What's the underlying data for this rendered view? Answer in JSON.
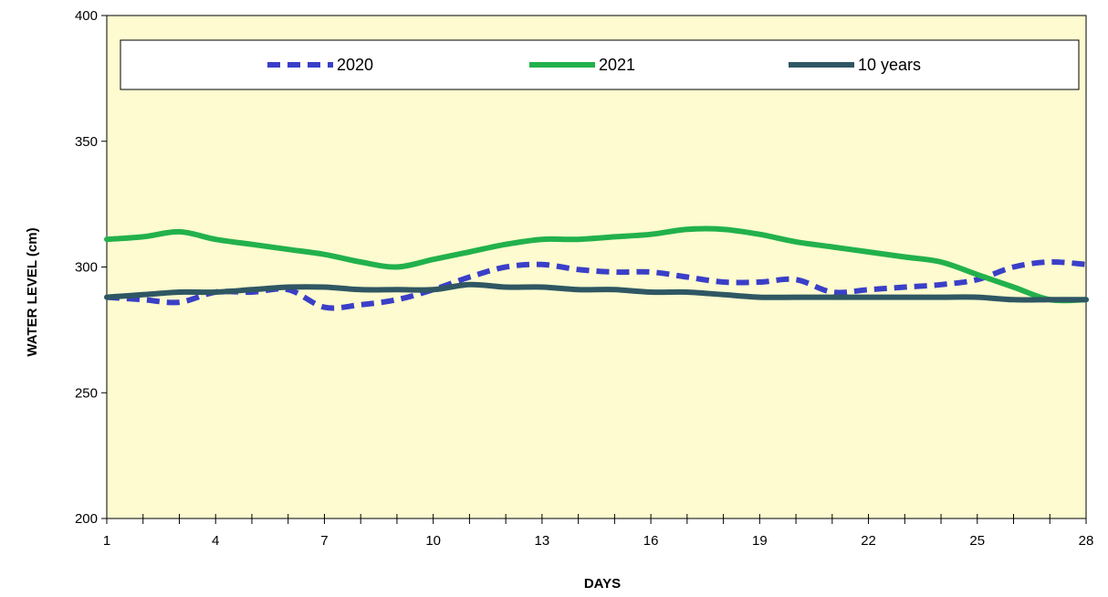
{
  "chart_data": {
    "type": "line",
    "xlabel": "DAYS",
    "ylabel": "WATER  LEVEL  (cm)",
    "xlim": [
      1,
      28
    ],
    "ylim": [
      200,
      400
    ],
    "x_ticks": [
      1,
      4,
      7,
      10,
      13,
      16,
      19,
      22,
      25,
      28
    ],
    "y_ticks": [
      200,
      250,
      300,
      350,
      400
    ],
    "grid": false,
    "legend_position": "top",
    "plot_background": "#FDFBCF",
    "series": [
      {
        "name": "2020",
        "color": "#3A3FC8",
        "style": "dashed",
        "x": [
          1,
          2,
          3,
          4,
          5,
          6,
          7,
          8,
          9,
          10,
          11,
          12,
          13,
          14,
          15,
          16,
          17,
          18,
          19,
          20,
          21,
          22,
          23,
          24,
          25,
          26,
          27,
          28
        ],
        "values": [
          288,
          287,
          286,
          290,
          290,
          291,
          284,
          285,
          287,
          291,
          296,
          300,
          301,
          299,
          298,
          298,
          296,
          294,
          294,
          295,
          290,
          291,
          292,
          293,
          295,
          300,
          302,
          301
        ]
      },
      {
        "name": "2021",
        "color": "#22B14C",
        "style": "solid",
        "x": [
          1,
          2,
          3,
          4,
          5,
          6,
          7,
          8,
          9,
          10,
          11,
          12,
          13,
          14,
          15,
          16,
          17,
          18,
          19,
          20,
          21,
          22,
          23,
          24,
          25,
          26,
          27,
          28
        ],
        "values": [
          311,
          312,
          314,
          311,
          309,
          307,
          305,
          302,
          300,
          303,
          306,
          309,
          311,
          311,
          312,
          313,
          315,
          315,
          313,
          310,
          308,
          306,
          304,
          302,
          297,
          292,
          287,
          287
        ]
      },
      {
        "name": "10 years",
        "color": "#2F5763",
        "style": "solid",
        "x": [
          1,
          2,
          3,
          4,
          5,
          6,
          7,
          8,
          9,
          10,
          11,
          12,
          13,
          14,
          15,
          16,
          17,
          18,
          19,
          20,
          21,
          22,
          23,
          24,
          25,
          26,
          27,
          28
        ],
        "values": [
          288,
          289,
          290,
          290,
          291,
          292,
          292,
          291,
          291,
          291,
          293,
          292,
          292,
          291,
          291,
          290,
          290,
          289,
          288,
          288,
          288,
          288,
          288,
          288,
          288,
          287,
          287,
          287
        ]
      }
    ]
  }
}
